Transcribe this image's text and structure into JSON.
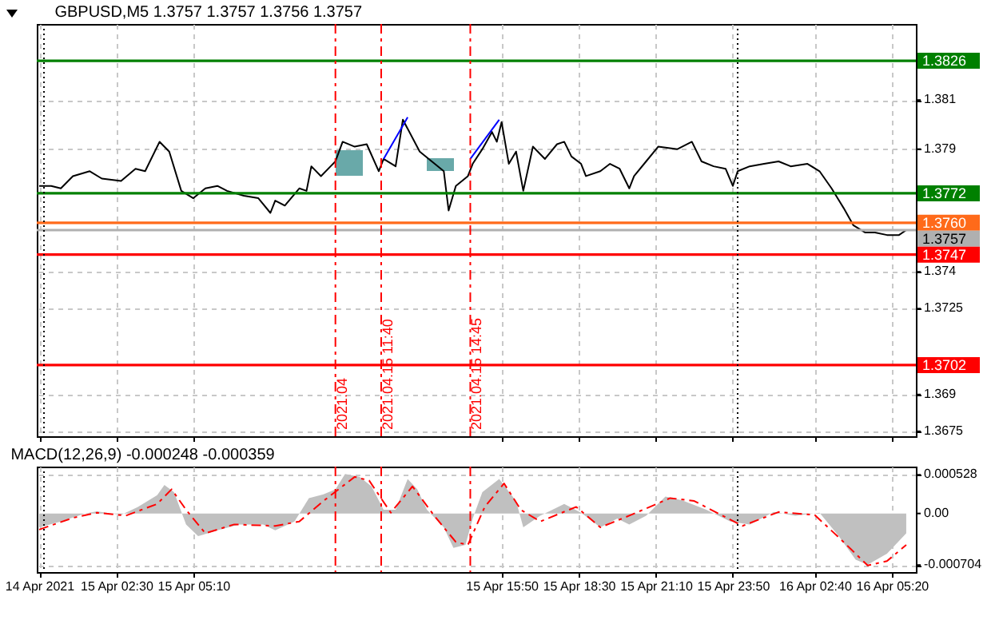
{
  "chart_data": [
    {
      "type": "line",
      "title": "GBPUSD,M5  1.3757 1.3757 1.3756 1.3757",
      "marker": "none",
      "grid": true,
      "tick_labels": "y",
      "xlim": [
        "2021-04-14T23:45",
        "2021-04-16T06:10"
      ],
      "ylim": [
        1.3673,
        1.3841
      ],
      "xticks": [
        {
          "value": "2021-04-14T23:50",
          "label": null
        },
        {
          "value": "2021-04-15T02:30",
          "label": null
        },
        {
          "value": "2021-04-15T05:10",
          "label": null
        },
        {
          "value": "2021-04-15T15:50",
          "label": null
        },
        {
          "value": "2021-04-15T18:30",
          "label": null
        },
        {
          "value": "2021-04-15T21:10",
          "label": null
        },
        {
          "value": "2021-04-15T23:50",
          "label": null
        },
        {
          "value": "2021-04-16T02:40",
          "label": null
        },
        {
          "value": "2021-04-16T05:20",
          "label": null
        }
      ],
      "yticks": [
        1.3675,
        1.369,
        1.3725,
        1.374,
        1.379,
        1.381
      ],
      "series": [
        {
          "color": "#000000",
          "x": [
            "2021-04-14T23:50",
            "2021-04-15T00:15",
            "2021-04-15T00:35",
            "2021-04-15T01:00",
            "2021-04-15T01:35",
            "2021-04-15T02:00",
            "2021-04-15T02:40",
            "2021-04-15T03:10",
            "2021-04-15T03:30",
            "2021-04-15T04:00",
            "2021-04-15T04:20",
            "2021-04-15T04:45",
            "2021-04-15T05:10",
            "2021-04-15T05:35",
            "2021-04-15T06:00",
            "2021-04-15T06:20",
            "2021-04-15T06:55",
            "2021-04-15T07:25",
            "2021-04-15T07:50",
            "2021-04-15T08:00",
            "2021-04-15T08:20",
            "2021-04-15T08:50",
            "2021-04-15T09:05",
            "2021-04-15T09:15",
            "2021-04-15T09:35",
            "2021-04-15T09:55",
            "2021-04-15T10:05",
            "2021-04-15T10:20",
            "2021-04-15T10:45",
            "2021-04-15T11:10",
            "2021-04-15T11:35",
            "2021-04-15T11:45",
            "2021-04-15T12:10",
            "2021-04-15T12:25",
            "2021-04-15T13:00",
            "2021-04-15T13:25",
            "2021-04-15T13:50",
            "2021-04-15T14:00",
            "2021-04-15T14:15",
            "2021-04-15T14:40",
            "2021-04-15T14:50",
            "2021-04-15T15:10",
            "2021-04-15T15:30",
            "2021-04-15T15:40",
            "2021-04-15T15:50",
            "2021-04-15T16:05",
            "2021-04-15T16:20",
            "2021-04-15T16:35",
            "2021-04-15T16:55",
            "2021-04-15T17:20",
            "2021-04-15T17:45",
            "2021-04-15T18:00",
            "2021-04-15T18:15",
            "2021-04-15T18:35",
            "2021-04-15T18:45",
            "2021-04-15T19:15",
            "2021-04-15T19:35",
            "2021-04-15T19:55",
            "2021-04-15T20:15",
            "2021-04-15T20:25",
            "2021-04-15T20:50",
            "2021-04-15T21:15",
            "2021-04-15T21:55",
            "2021-04-15T22:25",
            "2021-04-15T22:45",
            "2021-04-15T23:10",
            "2021-04-15T23:35",
            "2021-04-15T23:50",
            "2021-04-16T00:00",
            "2021-04-16T00:25",
            "2021-04-16T00:55",
            "2021-04-16T01:25",
            "2021-04-16T01:50",
            "2021-04-16T02:25",
            "2021-04-16T02:50",
            "2021-04-16T03:15",
            "2021-04-16T03:40",
            "2021-04-16T04:00",
            "2021-04-16T04:25",
            "2021-04-16T04:45",
            "2021-04-16T05:10",
            "2021-04-16T05:35",
            "2021-04-16T05:50"
          ],
          "values": [
            1.3775,
            1.3775,
            1.3774,
            1.3779,
            1.3781,
            1.3778,
            1.3777,
            1.3782,
            1.3781,
            1.3793,
            1.3789,
            1.3773,
            1.377,
            1.3774,
            1.3775,
            1.3773,
            1.3771,
            1.377,
            1.3764,
            1.3769,
            1.3767,
            1.3774,
            1.3773,
            1.3783,
            1.3779,
            1.3783,
            1.3785,
            1.3793,
            1.3791,
            1.3792,
            1.3781,
            1.3786,
            1.3783,
            1.3802,
            1.3789,
            1.3785,
            1.3781,
            1.3765,
            1.3775,
            1.3779,
            1.3784,
            1.379,
            1.3797,
            1.3793,
            1.3801,
            1.3784,
            1.3789,
            1.3773,
            1.3791,
            1.3786,
            1.3792,
            1.3793,
            1.3787,
            1.3784,
            1.3779,
            1.3781,
            1.3784,
            1.3782,
            1.3774,
            1.3779,
            1.3785,
            1.3791,
            1.379,
            1.3793,
            1.3785,
            1.3783,
            1.3782,
            1.3775,
            1.3781,
            1.3783,
            1.3784,
            1.3785,
            1.3783,
            1.3784,
            1.3781,
            1.3774,
            1.3766,
            1.3759,
            1.3756,
            1.3756,
            1.3755,
            1.3755,
            1.3757
          ]
        },
        {
          "type": "line",
          "color": "#0000ff",
          "x": [
            "2021-04-15T11:45",
            "2021-04-15T12:35"
          ],
          "values": [
            1.3786,
            1.3803
          ]
        },
        {
          "type": "line",
          "color": "#0000ff",
          "x": [
            "2021-04-15T14:45",
            "2021-04-15T15:45"
          ],
          "values": [
            1.3786,
            1.3802
          ]
        }
      ],
      "ref_lines": [
        {
          "axis": "y",
          "value": 1.3826,
          "label": "1.3826",
          "color": "#008000"
        },
        {
          "axis": "y",
          "value": 1.3772,
          "label": "1.3772",
          "color": "#008000"
        },
        {
          "axis": "y",
          "value": 1.376,
          "label": "1.3760",
          "color": "#ff6a1a"
        },
        {
          "axis": "y",
          "value": 1.3757,
          "label": "1.3757",
          "color": "#b0b0b0"
        },
        {
          "axis": "y",
          "value": 1.3747,
          "label": "1.3747",
          "color": "#ff0000"
        },
        {
          "axis": "y",
          "value": 1.3702,
          "label": "1.3702",
          "color": "#ff0000"
        },
        {
          "axis": "x",
          "value": "2021-04-15T00:00",
          "color": "#000000",
          "line_style": "dotted"
        },
        {
          "axis": "x",
          "value": "2021-04-16T00:00",
          "color": "#000000",
          "line_style": "dotted"
        },
        {
          "axis": "x",
          "value": "2021-04-15T10:05",
          "label": "2021.04",
          "color": "#ff0000",
          "line_style": "dashed"
        },
        {
          "axis": "x",
          "value": "2021-04-15T11:40",
          "label": "2021.04.15 11:40",
          "color": "#ff0000",
          "line_style": "dashed"
        },
        {
          "axis": "x",
          "value": "2021-04-15T14:45",
          "label": "2021.04.15 14:45",
          "color": "#ff0000",
          "line_style": "dashed"
        }
      ]
    },
    {
      "type": "area",
      "title": "MACD(12,26,9) -0.000248 -0.000359",
      "marker": "none",
      "grid": true,
      "xlim": [
        "2021-04-14T23:45",
        "2021-04-16T06:10"
      ],
      "ylim": [
        -0.0008,
        0.00064
      ],
      "xticks": [
        {
          "value": "2021-04-14T23:50",
          "label": "14 Apr 2021"
        },
        {
          "value": "2021-04-15T02:30",
          "label": "15 Apr 02:30"
        },
        {
          "value": "2021-04-15T05:10",
          "label": "15 Apr 05:10"
        },
        {
          "value": "2021-04-15T15:50",
          "label": "15 Apr 15:50"
        },
        {
          "value": "2021-04-15T18:30",
          "label": "15 Apr 18:30"
        },
        {
          "value": "2021-04-15T21:10",
          "label": "15 Apr 21:10"
        },
        {
          "value": "2021-04-15T23:50",
          "label": "15 Apr 23:50"
        },
        {
          "value": "2021-04-16T02:40",
          "label": "16 Apr 02:40"
        },
        {
          "value": "2021-04-16T05:20",
          "label": "16 Apr 05:20"
        }
      ],
      "yticks": [
        {
          "value": 0.000528,
          "label": "0.000528"
        },
        {
          "value": 0,
          "label": "0.00"
        },
        {
          "value": -0.000704,
          "label": "-0.000704"
        }
      ],
      "series": [
        {
          "color": "#c0c0c0",
          "x": [
            "2021-04-14T23:50",
            "2021-04-15T00:35",
            "2021-04-15T01:25",
            "2021-04-15T01:50",
            "2021-04-15T02:40",
            "2021-04-15T03:15",
            "2021-04-15T03:55",
            "2021-04-15T04:10",
            "2021-04-15T04:30",
            "2021-04-15T04:55",
            "2021-04-15T05:20",
            "2021-04-15T06:00",
            "2021-04-15T06:45",
            "2021-04-15T07:35",
            "2021-04-15T08:00",
            "2021-04-15T08:40",
            "2021-04-15T09:10",
            "2021-04-15T09:40",
            "2021-04-15T10:05",
            "2021-04-15T10:25",
            "2021-04-15T10:55",
            "2021-04-15T11:20",
            "2021-04-15T11:45",
            "2021-04-15T12:10",
            "2021-04-15T12:35",
            "2021-04-15T12:55",
            "2021-04-15T13:15",
            "2021-04-15T13:50",
            "2021-04-15T14:10",
            "2021-04-15T14:35",
            "2021-04-15T14:50",
            "2021-04-15T15:10",
            "2021-04-15T15:45",
            "2021-04-15T16:20",
            "2021-04-15T16:35",
            "2021-04-15T17:10",
            "2021-04-15T18:00",
            "2021-04-15T18:35",
            "2021-04-15T19:15",
            "2021-04-15T19:50",
            "2021-04-15T20:15",
            "2021-04-15T20:50",
            "2021-04-15T21:30",
            "2021-04-15T22:05",
            "2021-04-15T22:55",
            "2021-04-15T23:45",
            "2021-04-16T00:25",
            "2021-04-16T01:15",
            "2021-04-16T02:00",
            "2021-04-16T02:50",
            "2021-04-16T03:30",
            "2021-04-16T04:05",
            "2021-04-16T04:30",
            "2021-04-16T05:10",
            "2021-04-16T05:50"
          ],
          "values": [
            -0.00019,
            -0.00011,
            0,
            3e-05,
            -2e-05,
            9e-05,
            0.00025,
            0.00039,
            0.00029,
            -0.00015,
            -0.00031,
            -0.00023,
            -0.00015,
            -0.00015,
            -0.00023,
            -0.00011,
            0.00021,
            0.00026,
            0.00033,
            0.00054,
            0.0005,
            0.00037,
            5e-05,
            5e-05,
            0.00047,
            0.00033,
            5e-05,
            -0.00019,
            -0.00047,
            -0.00043,
            -7e-05,
            0.00029,
            0.00047,
            0.00017,
            -0.00019,
            -3e-05,
            0.00013,
            1e-05,
            -0.00019,
            -7e-05,
            -0.00015,
            -3e-05,
            0.00023,
            0.00018,
            5e-05,
            -0.00011,
            -0.00015,
            2e-05,
            -3e-05,
            1e-05,
            -0.00031,
            -0.00063,
            -0.0007,
            -0.00055,
            -0.00027
          ]
        },
        {
          "type": "line",
          "color": "#ff0000",
          "line_style": "dashed",
          "x": [
            "2021-04-14T23:50",
            "2021-04-15T01:00",
            "2021-04-15T01:50",
            "2021-04-15T02:50",
            "2021-04-15T03:55",
            "2021-04-15T04:25",
            "2021-04-15T04:55",
            "2021-04-15T05:35",
            "2021-04-15T06:35",
            "2021-04-15T08:00",
            "2021-04-15T08:50",
            "2021-04-15T09:40",
            "2021-04-15T10:45",
            "2021-04-15T11:15",
            "2021-04-15T12:00",
            "2021-04-15T12:45",
            "2021-04-15T13:30",
            "2021-04-15T14:15",
            "2021-04-15T14:40",
            "2021-04-15T15:15",
            "2021-04-15T15:55",
            "2021-04-15T16:30",
            "2021-04-15T17:10",
            "2021-04-15T18:25",
            "2021-04-15T19:15",
            "2021-04-15T20:15",
            "2021-04-15T21:40",
            "2021-04-15T22:30",
            "2021-04-16T00:10",
            "2021-04-16T01:25",
            "2021-04-16T02:40",
            "2021-04-16T03:40",
            "2021-04-16T04:30",
            "2021-04-16T05:10",
            "2021-04-16T05:50"
          ],
          "values": [
            -0.00022,
            -6e-05,
            1e-05,
            -3e-05,
            0.00013,
            0.00033,
            5e-05,
            -0.00027,
            -0.00015,
            -0.00017,
            -0.00011,
            0.00017,
            0.0005,
            0.00045,
            1e-05,
            0.00037,
            -3e-05,
            -0.00039,
            -0.00043,
            9e-05,
            0.00041,
            5e-05,
            -0.00011,
            9e-05,
            -0.00019,
            -3e-05,
            0.00021,
            0.00017,
            -0.00017,
            2e-05,
            -2e-05,
            -0.00039,
            -0.00071,
            -0.00065,
            -0.00043
          ]
        }
      ],
      "ref_lines": [
        {
          "axis": "x",
          "value": "2021-04-15T00:00",
          "color": "#000000",
          "line_style": "dotted"
        },
        {
          "axis": "x",
          "value": "2021-04-16T00:00",
          "color": "#000000",
          "line_style": "dotted"
        },
        {
          "axis": "x",
          "value": "2021-04-15T10:05",
          "color": "#ff0000",
          "line_style": "dashed"
        },
        {
          "axis": "x",
          "value": "2021-04-15T11:40",
          "color": "#ff0000",
          "line_style": "dashed"
        },
        {
          "axis": "x",
          "value": "2021-04-15T14:45",
          "color": "#ff0000",
          "line_style": "dashed"
        }
      ]
    }
  ]
}
